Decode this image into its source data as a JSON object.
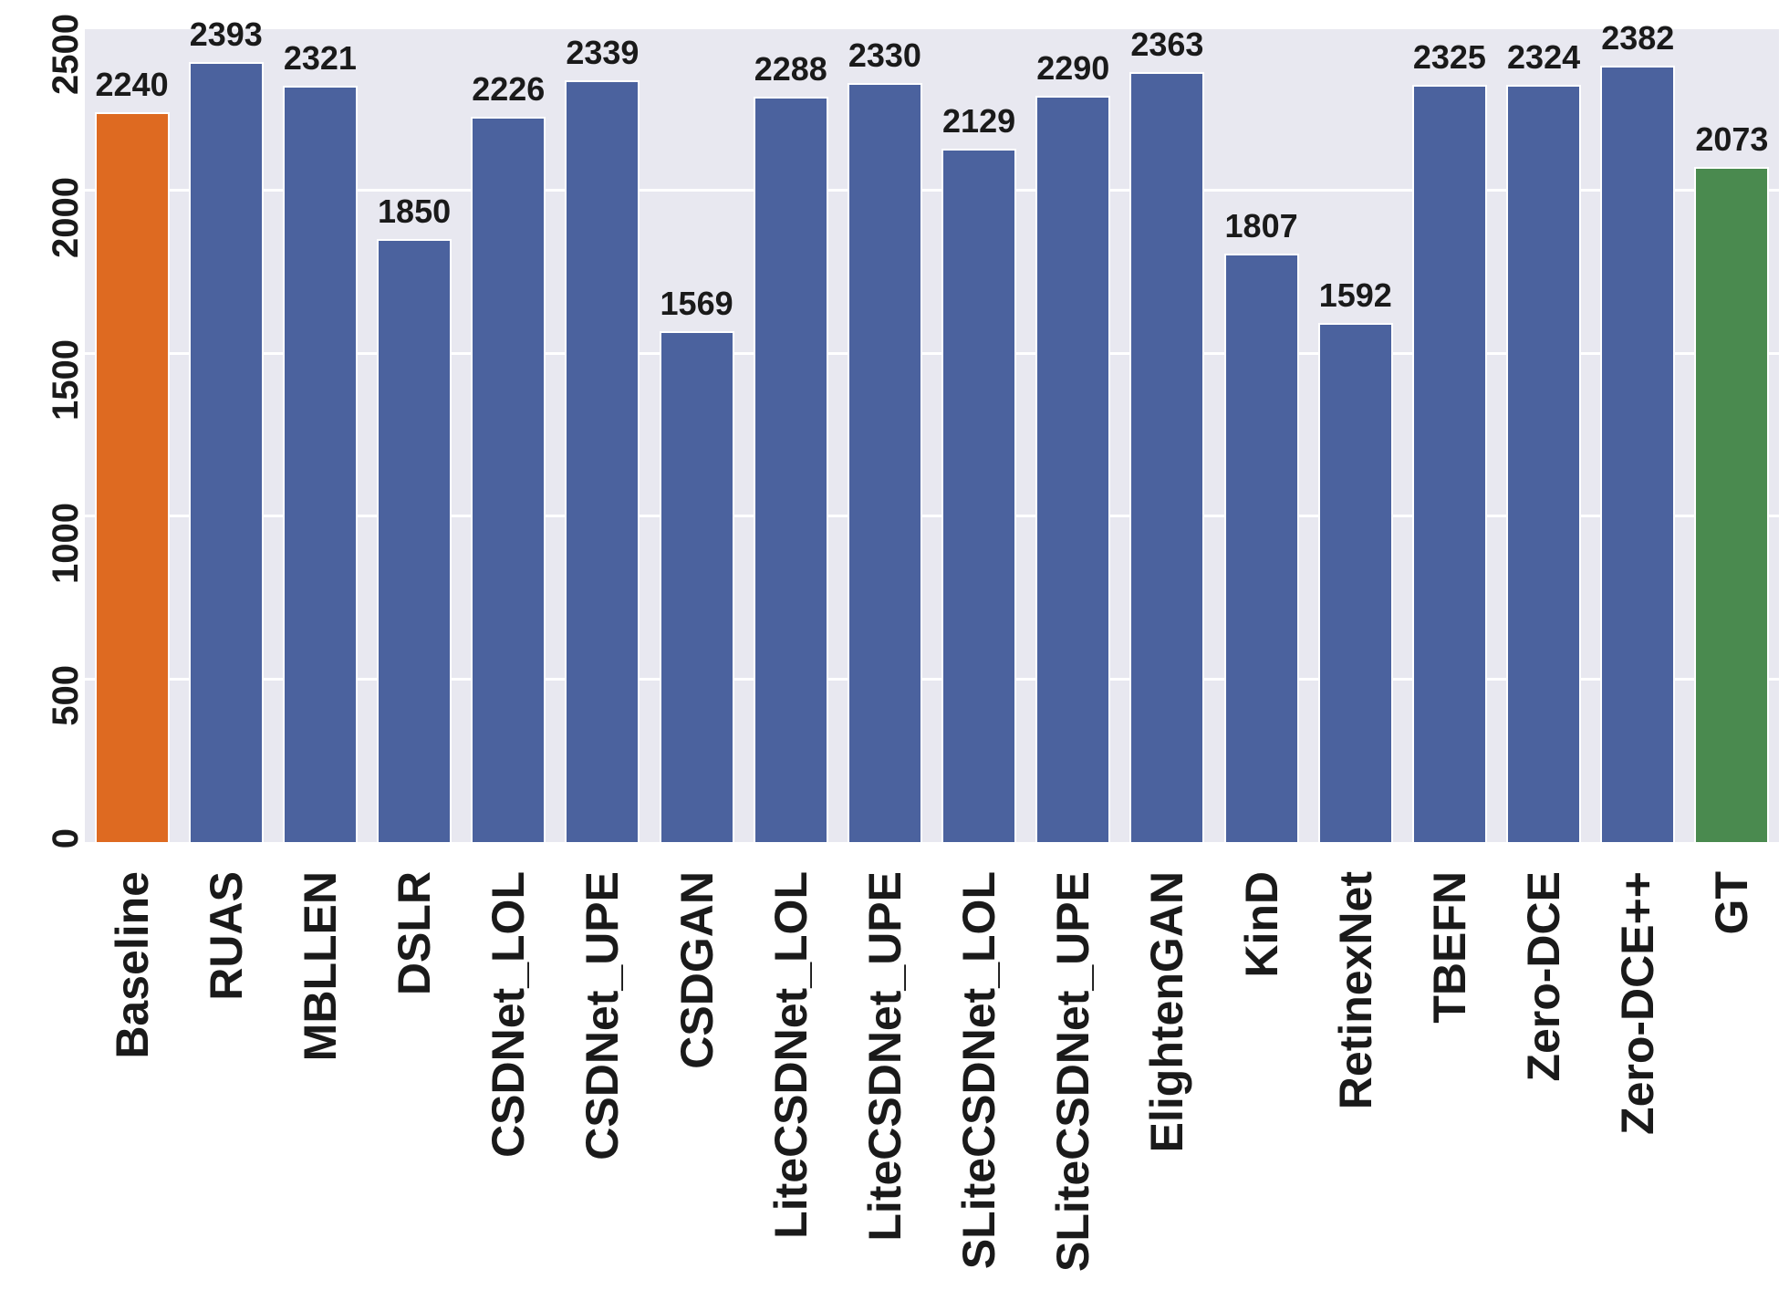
{
  "chart_data": {
    "type": "bar",
    "title": "",
    "xlabel": "",
    "ylabel": "",
    "categories": [
      "Baseline",
      "RUAS",
      "MBLLEN",
      "DSLR",
      "CSDNet_LOL",
      "CSDNet_UPE",
      "CSDGAN",
      "LiteCSDNet_LOL",
      "LiteCSDNet_UPE",
      "SLiteCSDNet_LOL",
      "SLiteCSDNet_UPE",
      "ElightenGAN",
      "KinD",
      "RetinexNet",
      "TBEFN",
      "Zero-DCE",
      "Zero-DCE++",
      "GT"
    ],
    "values": [
      2240,
      2393,
      2321,
      1850,
      2226,
      2339,
      1569,
      2288,
      2330,
      2129,
      2290,
      2363,
      1807,
      1592,
      2325,
      2324,
      2382,
      2073
    ],
    "value_labels_shown": true,
    "yticks": [
      0,
      500,
      1000,
      1500,
      2000,
      2500
    ],
    "ylim": [
      0,
      2500
    ],
    "grid": true,
    "tick_label_rotation_deg": 90,
    "legend": null,
    "colors": {
      "baseline_bar": "#de6a21",
      "default_bar": "#4b629e",
      "gt_bar": "#4a8a4f",
      "plot_background": "#e8e8f0",
      "gridline": "#ffffff",
      "bar_edge": "#ffffff",
      "text": "#1a1a1a"
    }
  }
}
